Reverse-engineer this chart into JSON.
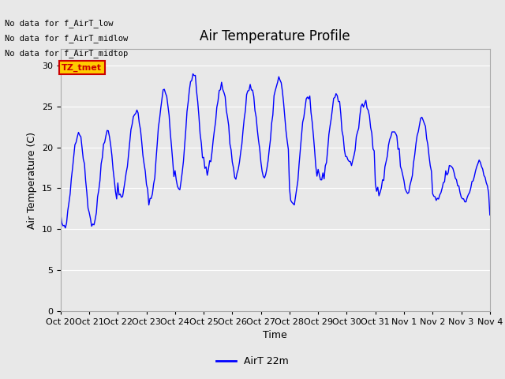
{
  "title": "Air Temperature Profile",
  "ylabel": "Air Temperature (C)",
  "xlabel": "Time",
  "legend_label": "AirT 22m",
  "line_color": "#0000ff",
  "ylim": [
    0,
    32
  ],
  "yticks": [
    0,
    5,
    10,
    15,
    20,
    25,
    30
  ],
  "bg_color": "#e8e8e8",
  "plot_bg_color": "#e8e8e8",
  "no_data_texts": [
    "No data for f_AirT_low",
    "No data for f_AirT_midlow",
    "No data for f_AirT_midtop"
  ],
  "tz_label": "TZ_tmet",
  "tz_box_bg": "#ffcc00",
  "tz_box_fg": "#cc0000",
  "xtick_labels": [
    "Oct 20",
    "Oct 21",
    "Oct 22",
    "Oct 23",
    "Oct 24",
    "Oct 25",
    "Oct 26",
    "Oct 27",
    "Oct 28",
    "Oct 29",
    "Oct 30",
    "Oct 31",
    "Nov 1",
    "Nov 2",
    "Nov 3",
    "Nov 4"
  ],
  "title_fontsize": 12,
  "axis_fontsize": 9,
  "tick_fontsize": 8,
  "daily_min": [
    10.0,
    10.5,
    14.0,
    13.5,
    15.0,
    17.0,
    16.5,
    16.5,
    13.0,
    16.0,
    18.0,
    14.5,
    14.5,
    13.5,
    13.5,
    11.5
  ],
  "daily_max": [
    22.0,
    22.0,
    24.5,
    27.0,
    29.0,
    27.5,
    27.5,
    28.5,
    26.0,
    26.5,
    25.5,
    22.0,
    23.5,
    17.5,
    18.0,
    12.0
  ]
}
